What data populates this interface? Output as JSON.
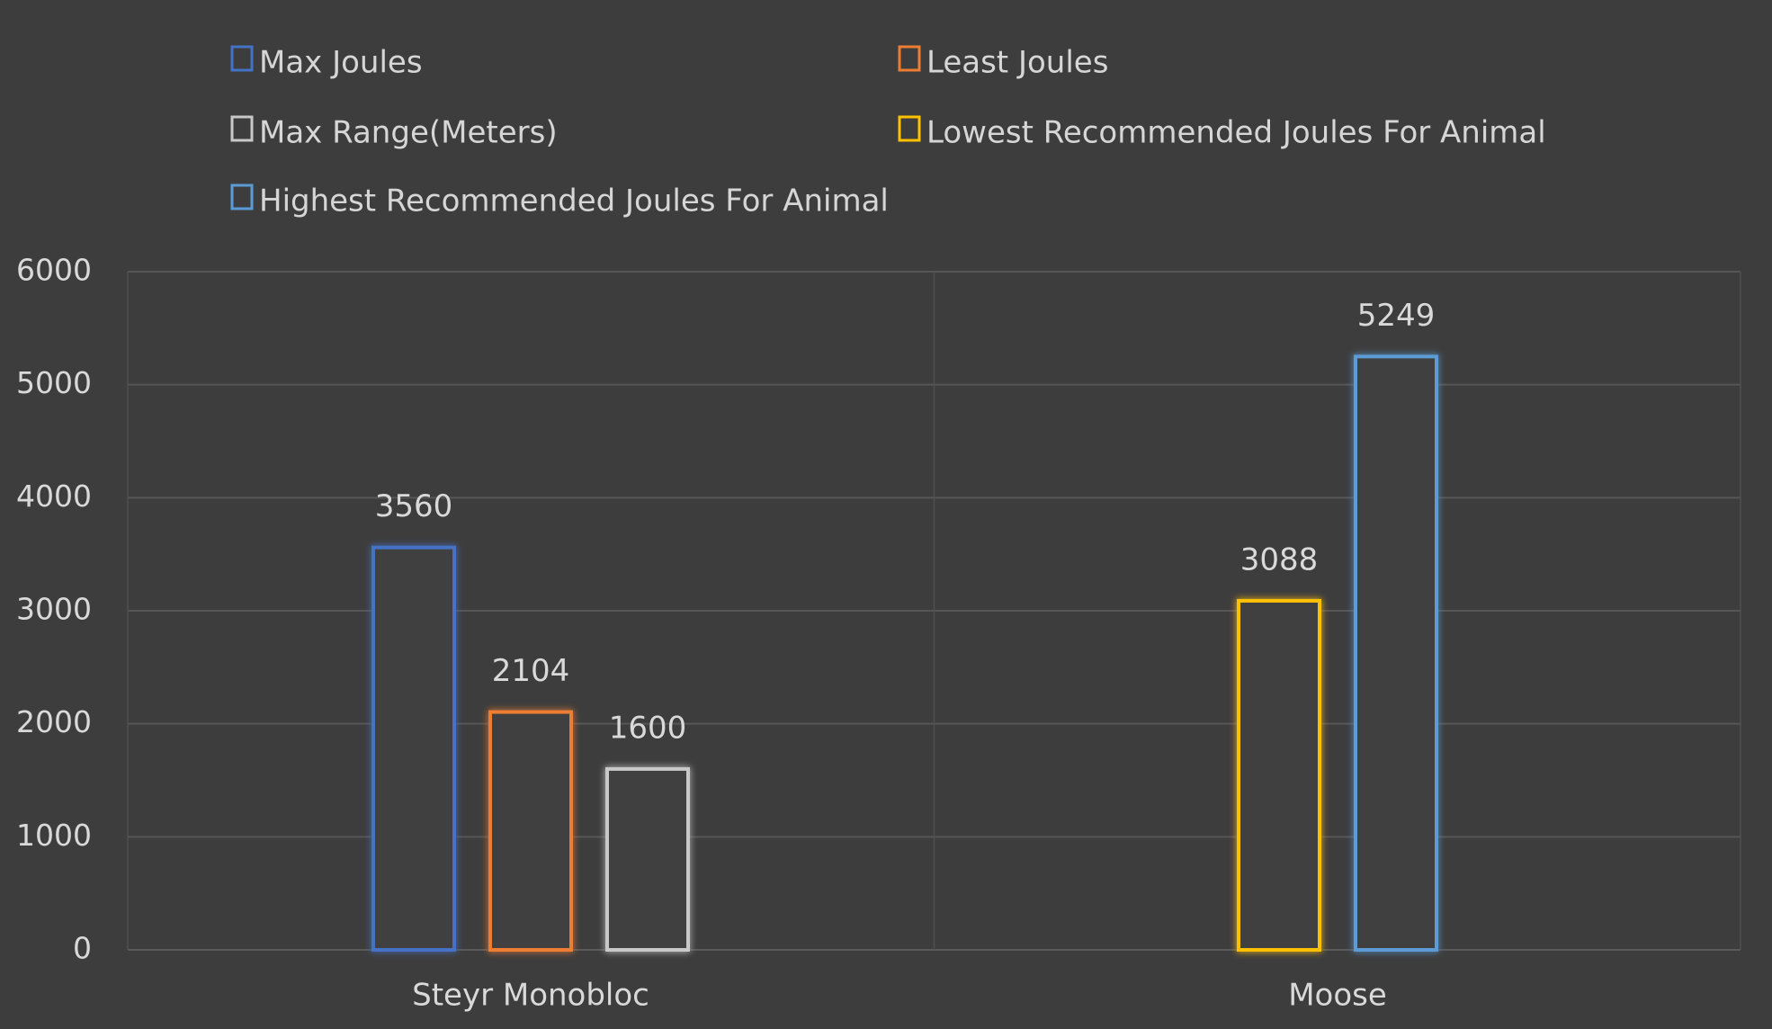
{
  "chart_data": {
    "type": "bar",
    "title": "",
    "xlabel": "",
    "ylabel": "",
    "categories": [
      "Steyr Monobloc",
      "Moose"
    ],
    "ylim": [
      0,
      6000
    ],
    "yticks": [
      0,
      1000,
      2000,
      3000,
      4000,
      5000,
      6000
    ],
    "grid": true,
    "legend_position": "top",
    "series": [
      {
        "name": "Max Joules",
        "color": "#4472c4",
        "values": [
          3560,
          null
        ]
      },
      {
        "name": "Least Joules",
        "color": "#ed7d31",
        "values": [
          2104,
          null
        ]
      },
      {
        "name": "Max Range(Meters)",
        "color": "#c8c8c8",
        "values": [
          1600,
          null
        ]
      },
      {
        "name": "Lowest Recommended Joules For Animal",
        "color": "#ffc000",
        "values": [
          null,
          3088
        ]
      },
      {
        "name": "Highest Recommended Joules For Animal",
        "color": "#5b9bd5",
        "values": [
          null,
          5249
        ]
      }
    ]
  }
}
